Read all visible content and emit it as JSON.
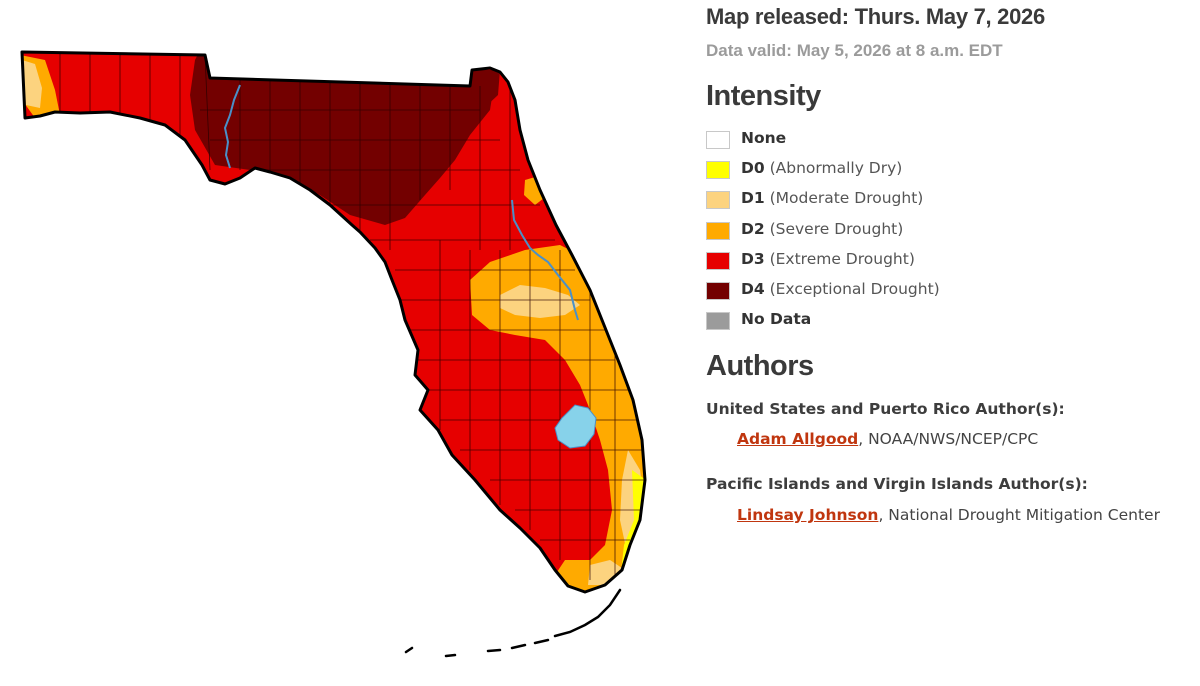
{
  "map": {
    "colors": {
      "none": "#ffffff",
      "d0": "#ffff00",
      "d1": "#fcd37f",
      "d2": "#ffaa00",
      "d3": "#e60000",
      "d4": "#730000",
      "no_data": "#9b9b9b",
      "water": "#87d2ea",
      "river": "#4a90c8",
      "county_border": "#2a0000"
    }
  },
  "header": {
    "released": "Map released: Thurs. May 7, 2026",
    "valid": "Data valid: May 5, 2026 at 8 a.m. EDT"
  },
  "legend": {
    "title": "Intensity",
    "items": [
      {
        "code": "None",
        "desc": "",
        "color": "#ffffff"
      },
      {
        "code": "D0",
        "desc": " (Abnormally Dry)",
        "color": "#ffff00"
      },
      {
        "code": "D1",
        "desc": " (Moderate Drought)",
        "color": "#fcd37f"
      },
      {
        "code": "D2",
        "desc": " (Severe Drought)",
        "color": "#ffaa00"
      },
      {
        "code": "D3",
        "desc": " (Extreme Drought)",
        "color": "#e60000"
      },
      {
        "code": "D4",
        "desc": " (Exceptional Drought)",
        "color": "#730000"
      },
      {
        "code": "No Data",
        "desc": "",
        "color": "#9b9b9b"
      }
    ]
  },
  "authors": {
    "title": "Authors",
    "groups": [
      {
        "heading": "United States and Puerto Rico Author(s):",
        "name": "Adam Allgood",
        "affiliation": ", NOAA/NWS/NCEP/CPC"
      },
      {
        "heading": "Pacific Islands and Virgin Islands Author(s):",
        "name": "Lindsay Johnson",
        "affiliation": ", National Drought Mitigation Center"
      }
    ]
  }
}
